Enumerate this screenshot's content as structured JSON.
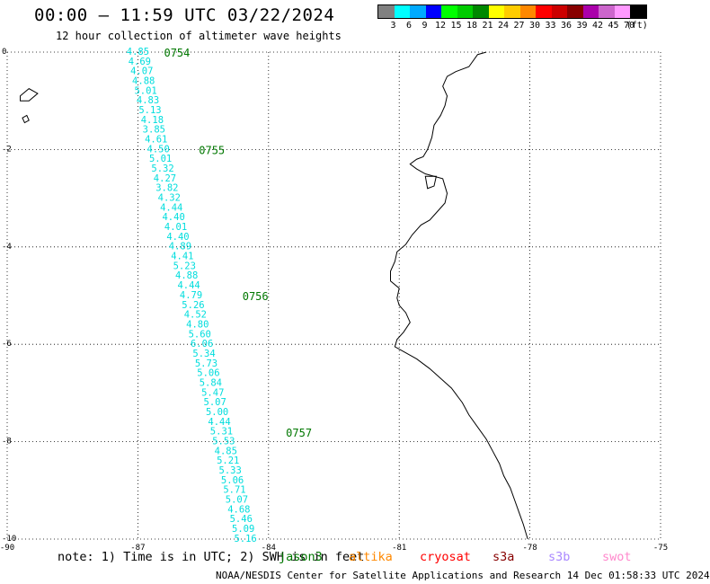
{
  "header": {
    "title": "00:00 — 11:59 UTC 03/22/2024",
    "subtitle": "12 hour collection of altimeter wave heights"
  },
  "colorbar": {
    "colors": [
      "#808080",
      "#00ffff",
      "#00aaff",
      "#0000ff",
      "#00ff00",
      "#00cc00",
      "#008800",
      "#ffff00",
      "#ffcc00",
      "#ff8800",
      "#ff0000",
      "#cc0000",
      "#880000",
      "#aa00aa",
      "#cc66cc",
      "#ff99ff",
      "#000000"
    ],
    "labels": [
      "3",
      "6",
      "9",
      "12",
      "15",
      "18",
      "21",
      "24",
      "27",
      "30",
      "33",
      "36",
      "39",
      "42",
      "45",
      "70",
      "(ft)"
    ]
  },
  "map": {
    "lon_range": [
      -90,
      -75
    ],
    "lat_range": [
      -10,
      0
    ],
    "x_ticks": [
      "-90",
      "-87",
      "-84",
      "-81",
      "-78",
      "-75"
    ],
    "y_ticks": [
      "0",
      "-2",
      "-4",
      "-6",
      "-8",
      "-10"
    ],
    "time_labels": [
      {
        "text": "0754",
        "lon": -86.4,
        "lat": 0.0
      },
      {
        "text": "0755",
        "lon": -85.6,
        "lat": -2.0
      },
      {
        "text": "0756",
        "lon": -84.6,
        "lat": -5.0
      },
      {
        "text": "0757",
        "lon": -83.6,
        "lat": -7.8
      }
    ],
    "wave_color": "#00dddd",
    "time_color": "#007700",
    "wave_heights": [
      {
        "v": "4.85",
        "lon": -87.0,
        "lat": 0.02
      },
      {
        "v": "4.69",
        "lon": -86.96,
        "lat": -0.18
      },
      {
        "v": "4.07",
        "lon": -86.91,
        "lat": -0.38
      },
      {
        "v": "4.88",
        "lon": -86.87,
        "lat": -0.58
      },
      {
        "v": "5.01",
        "lon": -86.82,
        "lat": -0.78
      },
      {
        "v": "4.83",
        "lon": -86.77,
        "lat": -0.98
      },
      {
        "v": "5.13",
        "lon": -86.72,
        "lat": -1.18
      },
      {
        "v": "4.18",
        "lon": -86.67,
        "lat": -1.38
      },
      {
        "v": "3.85",
        "lon": -86.63,
        "lat": -1.58
      },
      {
        "v": "4.61",
        "lon": -86.58,
        "lat": -1.78
      },
      {
        "v": "4.50",
        "lon": -86.53,
        "lat": -1.98
      },
      {
        "v": "5.01",
        "lon": -86.48,
        "lat": -2.18
      },
      {
        "v": "5.32",
        "lon": -86.43,
        "lat": -2.38
      },
      {
        "v": "4.27",
        "lon": -86.38,
        "lat": -2.58
      },
      {
        "v": "3.82",
        "lon": -86.33,
        "lat": -2.78
      },
      {
        "v": "4.32",
        "lon": -86.28,
        "lat": -2.98
      },
      {
        "v": "4.44",
        "lon": -86.23,
        "lat": -3.18
      },
      {
        "v": "4.40",
        "lon": -86.18,
        "lat": -3.38
      },
      {
        "v": "4.01",
        "lon": -86.13,
        "lat": -3.58
      },
      {
        "v": "4.40",
        "lon": -86.08,
        "lat": -3.78
      },
      {
        "v": "4.89",
        "lon": -86.03,
        "lat": -3.98
      },
      {
        "v": "4.41",
        "lon": -85.98,
        "lat": -4.18
      },
      {
        "v": "5.23",
        "lon": -85.93,
        "lat": -4.38
      },
      {
        "v": "4.88",
        "lon": -85.88,
        "lat": -4.58
      },
      {
        "v": "4.44",
        "lon": -85.83,
        "lat": -4.78
      },
      {
        "v": "4.79",
        "lon": -85.78,
        "lat": -4.98
      },
      {
        "v": "5.26",
        "lon": -85.73,
        "lat": -5.18
      },
      {
        "v": "4.52",
        "lon": -85.68,
        "lat": -5.38
      },
      {
        "v": "4.80",
        "lon": -85.63,
        "lat": -5.58
      },
      {
        "v": "5.60",
        "lon": -85.58,
        "lat": -5.78
      },
      {
        "v": "6.06",
        "lon": -85.53,
        "lat": -5.98
      },
      {
        "v": "5.34",
        "lon": -85.48,
        "lat": -6.18
      },
      {
        "v": "5.73",
        "lon": -85.43,
        "lat": -6.38
      },
      {
        "v": "5.06",
        "lon": -85.38,
        "lat": -6.58
      },
      {
        "v": "5.84",
        "lon": -85.33,
        "lat": -6.78
      },
      {
        "v": "5.47",
        "lon": -85.28,
        "lat": -6.98
      },
      {
        "v": "5.07",
        "lon": -85.23,
        "lat": -7.18
      },
      {
        "v": "5.00",
        "lon": -85.18,
        "lat": -7.38
      },
      {
        "v": "4.44",
        "lon": -85.13,
        "lat": -7.58
      },
      {
        "v": "5.31",
        "lon": -85.08,
        "lat": -7.78
      },
      {
        "v": "5.53",
        "lon": -85.03,
        "lat": -7.98
      },
      {
        "v": "4.85",
        "lon": -84.98,
        "lat": -8.18
      },
      {
        "v": "5.21",
        "lon": -84.93,
        "lat": -8.38
      },
      {
        "v": "5.33",
        "lon": -84.88,
        "lat": -8.58
      },
      {
        "v": "5.06",
        "lon": -84.83,
        "lat": -8.78
      },
      {
        "v": "5.71",
        "lon": -84.78,
        "lat": -8.98
      },
      {
        "v": "5.07",
        "lon": -84.73,
        "lat": -9.18
      },
      {
        "v": "4.68",
        "lon": -84.68,
        "lat": -9.38
      },
      {
        "v": "5.46",
        "lon": -84.63,
        "lat": -9.58
      },
      {
        "v": "5.09",
        "lon": -84.58,
        "lat": -9.78
      },
      {
        "v": "5.16",
        "lon": -84.53,
        "lat": -9.98
      }
    ],
    "coastline": [
      [
        -79.0,
        0.0
      ],
      [
        -79.2,
        -0.05
      ],
      [
        -79.4,
        -0.3
      ],
      [
        -79.7,
        -0.4
      ],
      [
        -79.9,
        -0.5
      ],
      [
        -80.0,
        -0.7
      ],
      [
        -79.9,
        -0.9
      ],
      [
        -79.95,
        -1.1
      ],
      [
        -80.05,
        -1.3
      ],
      [
        -80.2,
        -1.5
      ],
      [
        -80.25,
        -1.75
      ],
      [
        -80.35,
        -2.0
      ],
      [
        -80.45,
        -2.15
      ],
      [
        -80.6,
        -2.2
      ],
      [
        -80.75,
        -2.3
      ],
      [
        -80.6,
        -2.4
      ],
      [
        -80.4,
        -2.5
      ],
      [
        -80.0,
        -2.6
      ],
      [
        -79.9,
        -2.9
      ],
      [
        -79.95,
        -3.1
      ],
      [
        -80.15,
        -3.3
      ],
      [
        -80.3,
        -3.45
      ],
      [
        -80.5,
        -3.55
      ],
      [
        -80.7,
        -3.75
      ],
      [
        -80.85,
        -3.95
      ],
      [
        -81.05,
        -4.1
      ],
      [
        -81.1,
        -4.3
      ],
      [
        -81.2,
        -4.5
      ],
      [
        -81.2,
        -4.7
      ],
      [
        -81.0,
        -4.85
      ],
      [
        -81.05,
        -5.05
      ],
      [
        -81.0,
        -5.2
      ],
      [
        -80.85,
        -5.35
      ],
      [
        -80.75,
        -5.55
      ],
      [
        -80.9,
        -5.75
      ],
      [
        -81.05,
        -5.9
      ],
      [
        -81.1,
        -6.05
      ],
      [
        -80.9,
        -6.15
      ],
      [
        -80.6,
        -6.3
      ],
      [
        -80.3,
        -6.5
      ],
      [
        -80.05,
        -6.7
      ],
      [
        -79.8,
        -6.9
      ],
      [
        -79.55,
        -7.2
      ],
      [
        -79.4,
        -7.45
      ],
      [
        -79.2,
        -7.7
      ],
      [
        -79.0,
        -7.95
      ],
      [
        -78.85,
        -8.2
      ],
      [
        -78.7,
        -8.45
      ],
      [
        -78.6,
        -8.7
      ],
      [
        -78.45,
        -8.95
      ],
      [
        -78.35,
        -9.2
      ],
      [
        -78.25,
        -9.45
      ],
      [
        -78.15,
        -9.7
      ],
      [
        -78.05,
        -10.0
      ]
    ],
    "islands": [
      [
        [
          -89.7,
          -0.9
        ],
        [
          -89.5,
          -0.75
        ],
        [
          -89.3,
          -0.85
        ],
        [
          -89.5,
          -1.0
        ],
        [
          -89.7,
          -1.0
        ]
      ],
      [
        [
          -89.65,
          -1.35
        ],
        [
          -89.55,
          -1.3
        ],
        [
          -89.5,
          -1.4
        ],
        [
          -89.6,
          -1.45
        ]
      ]
    ]
  },
  "footer": {
    "note": "note:  1) Time is in UTC; 2) SWH is in feet",
    "satellites": [
      {
        "name": "jason3",
        "color": "#007700"
      },
      {
        "name": "altika",
        "color": "#ff8800"
      },
      {
        "name": "cryosat",
        "color": "#ff0000"
      },
      {
        "name": "s3a",
        "color": "#880000"
      },
      {
        "name": "s3b",
        "color": "#aa88ff"
      },
      {
        "name": "swot",
        "color": "#ff88cc"
      }
    ],
    "credit": "NOAA/NESDIS Center for Satellite Applications and Research    14 Dec 01:58:33 UTC 2024"
  }
}
